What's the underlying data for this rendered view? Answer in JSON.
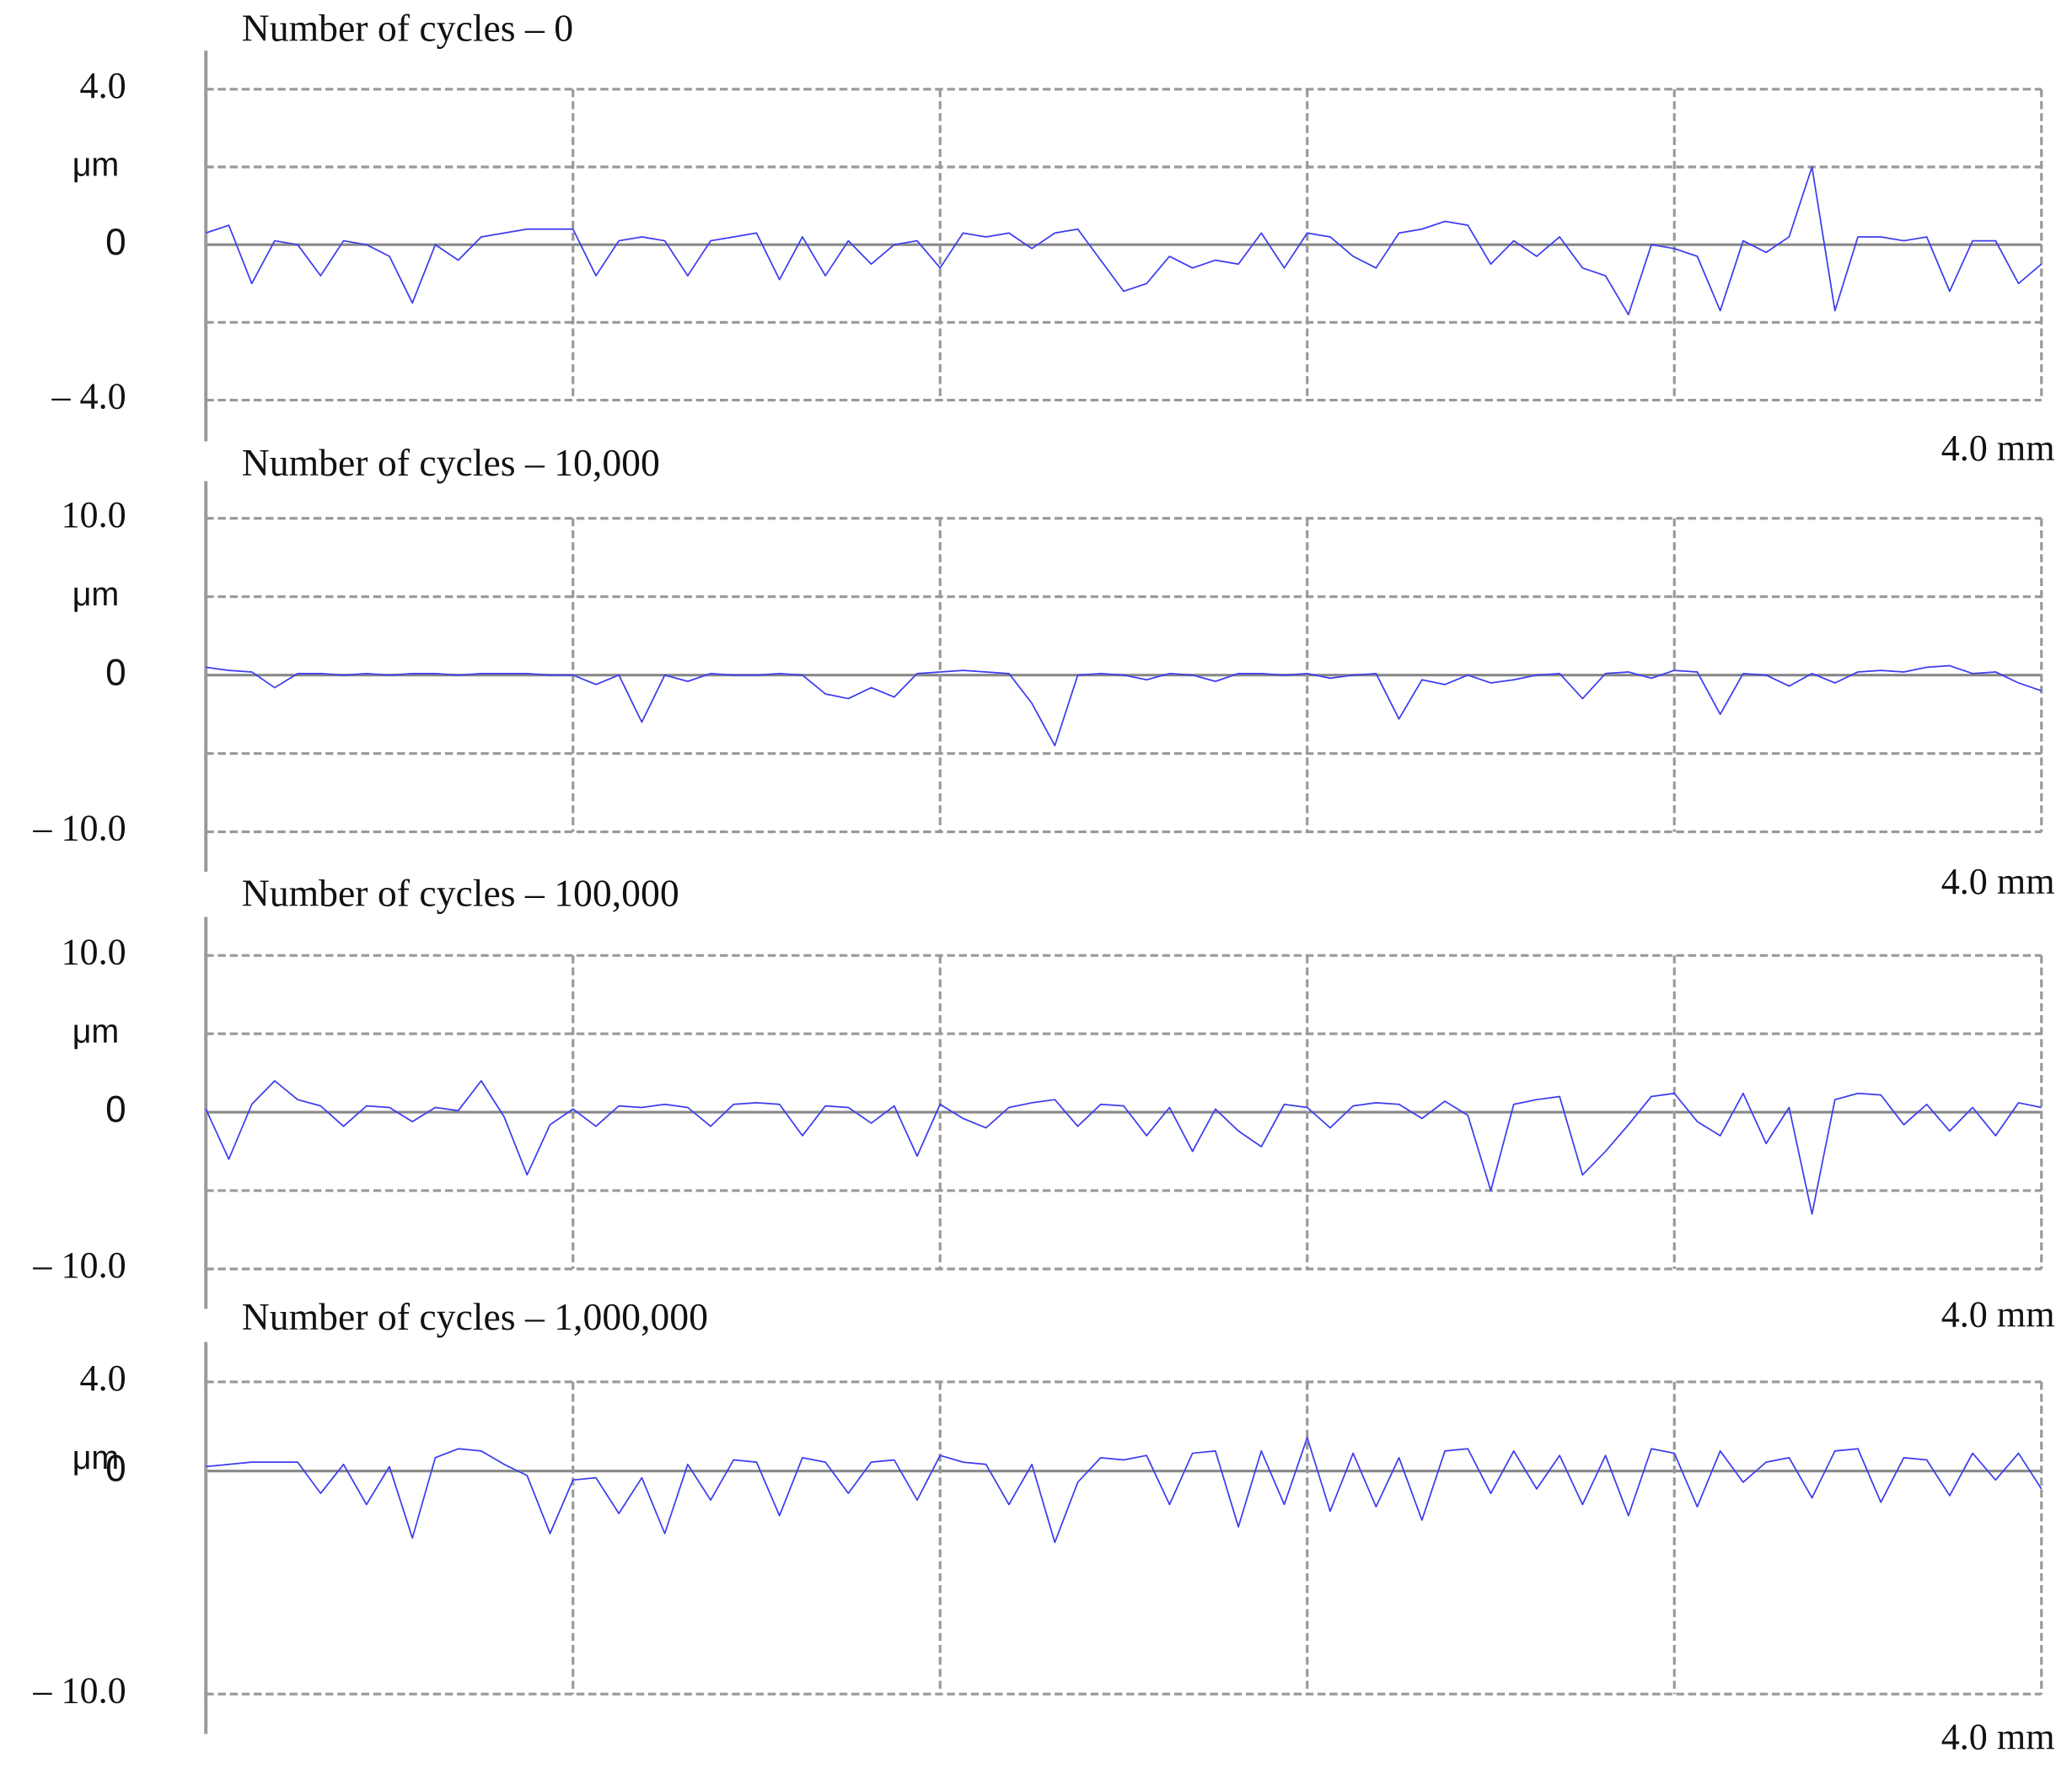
{
  "chart_data": [
    {
      "type": "line",
      "title": "Number of cycles – 0",
      "ylabel": "μm",
      "color": "#3c3cf0",
      "grid": true,
      "xlim": [
        0,
        4
      ],
      "xticks": [
        {
          "value": 4,
          "label": "4.0 mm"
        }
      ],
      "xgrid": [
        0.8,
        1.6,
        2.4,
        3.2,
        4
      ],
      "ylim": [
        -4,
        4
      ],
      "yticks": [
        {
          "value": 4,
          "label": "4.0"
        },
        0,
        {
          "value": -4,
          "label": "– 4.0"
        }
      ],
      "ygrid": [
        4,
        2,
        0,
        -2,
        -4
      ],
      "x": [
        0,
        0.05,
        0.1,
        0.15,
        0.2,
        0.25,
        0.3,
        0.35,
        0.4,
        0.45,
        0.5,
        0.55,
        0.6,
        0.65,
        0.7,
        0.75,
        0.8,
        0.85,
        0.9,
        0.95,
        1,
        1.05,
        1.1,
        1.15,
        1.2,
        1.25,
        1.3,
        1.35,
        1.4,
        1.45,
        1.5,
        1.55,
        1.6,
        1.65,
        1.7,
        1.75,
        1.8,
        1.85,
        1.9,
        1.95,
        2,
        2.05,
        2.1,
        2.15,
        2.2,
        2.25,
        2.3,
        2.35,
        2.4,
        2.45,
        2.5,
        2.55,
        2.6,
        2.65,
        2.7,
        2.75,
        2.8,
        2.85,
        2.9,
        2.95,
        3,
        3.05,
        3.1,
        3.15,
        3.2,
        3.25,
        3.3,
        3.35,
        3.4,
        3.45,
        3.5,
        3.55,
        3.6,
        3.65,
        3.7,
        3.75,
        3.8,
        3.85,
        3.9,
        3.95,
        4
      ],
      "values": [
        0.3,
        0.5,
        -1.0,
        0.1,
        0.0,
        -0.8,
        0.1,
        0.0,
        -0.3,
        -1.5,
        0.0,
        -0.4,
        0.2,
        0.3,
        0.4,
        0.4,
        0.4,
        -0.8,
        0.1,
        0.2,
        0.1,
        -0.8,
        0.1,
        0.2,
        0.3,
        -0.9,
        0.2,
        -0.8,
        0.1,
        -0.5,
        0.0,
        0.1,
        -0.6,
        0.3,
        0.2,
        0.3,
        -0.1,
        0.3,
        0.4,
        -0.4,
        -1.2,
        -1.0,
        -0.3,
        -0.6,
        -0.4,
        -0.5,
        0.3,
        -0.6,
        0.3,
        0.2,
        -0.3,
        -0.6,
        0.3,
        0.4,
        0.6,
        0.5,
        -0.5,
        0.1,
        -0.3,
        0.2,
        -0.6,
        -0.8,
        -1.8,
        0.0,
        -0.1,
        -0.3,
        -1.7,
        0.1,
        -0.2,
        0.2,
        2.0,
        -1.7,
        0.2,
        0.2,
        0.1,
        0.2,
        -1.2,
        0.1,
        0.1,
        -1.0,
        -0.5
      ]
    },
    {
      "type": "line",
      "title": "Number of cycles – 10,000",
      "ylabel": "μm",
      "color": "#3c3cf0",
      "grid": true,
      "xlim": [
        0,
        4
      ],
      "xticks": [
        {
          "value": 4,
          "label": "4.0 mm"
        }
      ],
      "xgrid": [
        0.8,
        1.6,
        2.4,
        3.2,
        4
      ],
      "ylim": [
        -10,
        10
      ],
      "yticks": [
        {
          "value": 10,
          "label": "10.0"
        },
        0,
        {
          "value": -10,
          "label": "– 10.0"
        }
      ],
      "ygrid": [
        10,
        5,
        0,
        -5,
        -10
      ],
      "x": [
        0,
        0.05,
        0.1,
        0.15,
        0.2,
        0.25,
        0.3,
        0.35,
        0.4,
        0.45,
        0.5,
        0.55,
        0.6,
        0.65,
        0.7,
        0.75,
        0.8,
        0.85,
        0.9,
        0.95,
        1,
        1.05,
        1.1,
        1.15,
        1.2,
        1.25,
        1.3,
        1.35,
        1.4,
        1.45,
        1.5,
        1.55,
        1.6,
        1.65,
        1.7,
        1.75,
        1.8,
        1.85,
        1.9,
        1.95,
        2,
        2.05,
        2.1,
        2.15,
        2.2,
        2.25,
        2.3,
        2.35,
        2.4,
        2.45,
        2.5,
        2.55,
        2.6,
        2.65,
        2.7,
        2.75,
        2.8,
        2.85,
        2.9,
        2.95,
        3,
        3.05,
        3.1,
        3.15,
        3.2,
        3.25,
        3.3,
        3.35,
        3.4,
        3.45,
        3.5,
        3.55,
        3.6,
        3.65,
        3.7,
        3.75,
        3.8,
        3.85,
        3.9,
        3.95,
        4
      ],
      "values": [
        0.5,
        0.3,
        0.2,
        -0.8,
        0.1,
        0.1,
        0.0,
        0.1,
        0.0,
        0.1,
        0.1,
        0.0,
        0.1,
        0.1,
        0.1,
        0.0,
        0.0,
        -0.6,
        0.0,
        -3.0,
        0.0,
        -0.4,
        0.1,
        0.0,
        0.0,
        0.1,
        0.0,
        -1.2,
        -1.5,
        -0.8,
        -1.4,
        0.1,
        0.2,
        0.3,
        0.2,
        0.1,
        -1.8,
        -4.5,
        0.0,
        0.1,
        0.0,
        -0.3,
        0.1,
        0.0,
        -0.4,
        0.1,
        0.1,
        0.0,
        0.1,
        -0.2,
        0.0,
        0.1,
        -2.8,
        -0.3,
        -0.6,
        0.0,
        -0.5,
        -0.3,
        0.0,
        0.1,
        -1.5,
        0.1,
        0.2,
        -0.2,
        0.3,
        0.2,
        -2.5,
        0.1,
        0.0,
        -0.7,
        0.1,
        -0.5,
        0.2,
        0.3,
        0.2,
        0.5,
        0.6,
        0.1,
        0.2,
        -0.5,
        -1.0
      ]
    },
    {
      "type": "line",
      "title": "Number of cycles – 100,000",
      "ylabel": "μm",
      "color": "#3c3cf0",
      "grid": true,
      "xlim": [
        0,
        4
      ],
      "xticks": [
        {
          "value": 4,
          "label": "4.0 mm"
        }
      ],
      "xgrid": [
        0.8,
        1.6,
        2.4,
        3.2,
        4
      ],
      "ylim": [
        -10,
        10
      ],
      "yticks": [
        {
          "value": 10,
          "label": "10.0"
        },
        0,
        {
          "value": -10,
          "label": "– 10.0"
        }
      ],
      "ygrid": [
        10,
        5,
        0,
        -5,
        -10
      ],
      "x": [
        0,
        0.05,
        0.1,
        0.15,
        0.2,
        0.25,
        0.3,
        0.35,
        0.4,
        0.45,
        0.5,
        0.55,
        0.6,
        0.65,
        0.7,
        0.75,
        0.8,
        0.85,
        0.9,
        0.95,
        1,
        1.05,
        1.1,
        1.15,
        1.2,
        1.25,
        1.3,
        1.35,
        1.4,
        1.45,
        1.5,
        1.55,
        1.6,
        1.65,
        1.7,
        1.75,
        1.8,
        1.85,
        1.9,
        1.95,
        2,
        2.05,
        2.1,
        2.15,
        2.2,
        2.25,
        2.3,
        2.35,
        2.4,
        2.45,
        2.5,
        2.55,
        2.6,
        2.65,
        2.7,
        2.75,
        2.8,
        2.85,
        2.9,
        2.95,
        3,
        3.05,
        3.1,
        3.15,
        3.2,
        3.25,
        3.3,
        3.35,
        3.4,
        3.45,
        3.5,
        3.55,
        3.6,
        3.65,
        3.7,
        3.75,
        3.8,
        3.85,
        3.9,
        3.95,
        4
      ],
      "values": [
        0.2,
        -3.0,
        0.5,
        2.0,
        0.8,
        0.4,
        -0.9,
        0.4,
        0.3,
        -0.6,
        0.3,
        0.1,
        2.0,
        -0.3,
        -4.0,
        -0.8,
        0.2,
        -0.9,
        0.4,
        0.3,
        0.5,
        0.3,
        -0.9,
        0.5,
        0.6,
        0.5,
        -1.5,
        0.4,
        0.3,
        -0.7,
        0.4,
        -2.8,
        0.5,
        -0.4,
        -1.0,
        0.3,
        0.6,
        0.8,
        -0.9,
        0.5,
        0.4,
        -1.5,
        0.3,
        -2.5,
        0.2,
        -1.2,
        -2.2,
        0.5,
        0.3,
        -1.0,
        0.4,
        0.6,
        0.5,
        -0.4,
        0.7,
        -0.2,
        -5.0,
        0.5,
        0.8,
        1.0,
        -4.0,
        -2.5,
        -0.8,
        1.0,
        1.2,
        -0.6,
        -1.5,
        1.2,
        -2.0,
        0.3,
        -6.5,
        0.8,
        1.2,
        1.1,
        -0.8,
        0.5,
        -1.2,
        0.3,
        -1.5,
        0.6,
        0.3
      ]
    },
    {
      "type": "line",
      "title": "Number of cycles – 1,000,000",
      "ylabel": "μm",
      "color": "#3c3cf0",
      "grid": true,
      "xlim": [
        0,
        4
      ],
      "xticks": [
        {
          "value": 4,
          "label": "4.0 mm"
        }
      ],
      "xgrid": [
        0.8,
        1.6,
        2.4,
        3.2,
        4
      ],
      "ylim": [
        -10,
        4
      ],
      "yticks": [
        {
          "value": 4,
          "label": "4.0"
        },
        0,
        {
          "value": -10,
          "label": "– 10.0"
        }
      ],
      "ygrid": [
        4,
        0,
        -10
      ],
      "x": [
        0,
        0.05,
        0.1,
        0.15,
        0.2,
        0.25,
        0.3,
        0.35,
        0.4,
        0.45,
        0.5,
        0.55,
        0.6,
        0.65,
        0.7,
        0.75,
        0.8,
        0.85,
        0.9,
        0.95,
        1,
        1.05,
        1.1,
        1.15,
        1.2,
        1.25,
        1.3,
        1.35,
        1.4,
        1.45,
        1.5,
        1.55,
        1.6,
        1.65,
        1.7,
        1.75,
        1.8,
        1.85,
        1.9,
        1.95,
        2,
        2.05,
        2.1,
        2.15,
        2.2,
        2.25,
        2.3,
        2.35,
        2.4,
        2.45,
        2.5,
        2.55,
        2.6,
        2.65,
        2.7,
        2.75,
        2.8,
        2.85,
        2.9,
        2.95,
        3,
        3.05,
        3.1,
        3.15,
        3.2,
        3.25,
        3.3,
        3.35,
        3.4,
        3.45,
        3.5,
        3.55,
        3.6,
        3.65,
        3.7,
        3.75,
        3.8,
        3.85,
        3.9,
        3.95,
        4
      ],
      "values": [
        0.2,
        0.3,
        0.4,
        0.4,
        0.4,
        -1.0,
        0.3,
        -1.5,
        0.2,
        -3.0,
        0.6,
        1.0,
        0.9,
        0.3,
        -0.2,
        -2.8,
        -0.4,
        -0.3,
        -1.9,
        -0.3,
        -2.8,
        0.3,
        -1.3,
        0.5,
        0.4,
        -2.0,
        0.6,
        0.4,
        -1.0,
        0.4,
        0.5,
        -1.3,
        0.7,
        0.4,
        0.3,
        -1.5,
        0.3,
        -3.2,
        -0.5,
        0.6,
        0.5,
        0.7,
        -1.5,
        0.8,
        0.9,
        -2.5,
        0.9,
        -1.5,
        1.5,
        -1.8,
        0.8,
        -1.6,
        0.6,
        -2.2,
        0.9,
        1.0,
        -1.0,
        0.9,
        -0.8,
        0.7,
        -1.5,
        0.7,
        -2.0,
        1.0,
        0.8,
        -1.6,
        0.9,
        -0.5,
        0.4,
        0.6,
        -1.2,
        0.9,
        1.0,
        -1.4,
        0.6,
        0.5,
        -1.1,
        0.8,
        -0.4,
        0.8,
        -0.8
      ]
    }
  ]
}
